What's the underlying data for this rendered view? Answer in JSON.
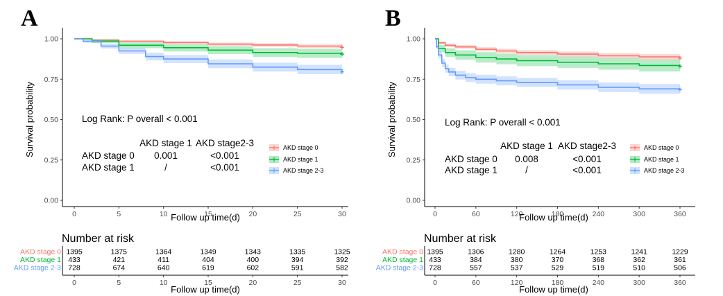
{
  "colors": {
    "stage0": "#F8766D",
    "stage1": "#00BA38",
    "stage23": "#619CFF"
  },
  "chart_data": [
    {
      "panel": "A",
      "type": "line",
      "ylabel": "Survival probability",
      "xlabel": "Follow up time(d)",
      "xlim": [
        0,
        30
      ],
      "ylim": [
        0,
        1
      ],
      "xticks": [
        0,
        5,
        10,
        15,
        20,
        25,
        30
      ],
      "yticks": [
        "0.00",
        "0.25",
        "0.50",
        "0.75",
        "1.00"
      ],
      "series": [
        {
          "name": "AKD stage 0",
          "key": "stage0",
          "x": [
            0,
            2,
            5,
            10,
            15,
            20,
            25,
            30
          ],
          "y": [
            1.0,
            0.992,
            0.985,
            0.977,
            0.967,
            0.962,
            0.955,
            0.947
          ],
          "lower": [
            1.0,
            0.988,
            0.979,
            0.969,
            0.957,
            0.951,
            0.943,
            0.933
          ],
          "upper": [
            1.0,
            0.997,
            0.991,
            0.985,
            0.977,
            0.973,
            0.967,
            0.961
          ]
        },
        {
          "name": "AKD stage 1",
          "key": "stage1",
          "x": [
            0,
            2,
            5,
            10,
            15,
            20,
            25,
            30
          ],
          "y": [
            1.0,
            0.985,
            0.96,
            0.945,
            0.93,
            0.915,
            0.91,
            0.905
          ],
          "lower": [
            1.0,
            0.973,
            0.942,
            0.922,
            0.905,
            0.888,
            0.882,
            0.876
          ],
          "upper": [
            1.0,
            0.997,
            0.978,
            0.967,
            0.955,
            0.942,
            0.938,
            0.934
          ]
        },
        {
          "name": "AKD stage 2-3",
          "key": "stage23",
          "x": [
            0,
            1,
            3,
            5,
            8,
            10,
            15,
            20,
            25,
            30
          ],
          "y": [
            1.0,
            0.985,
            0.955,
            0.925,
            0.89,
            0.875,
            0.845,
            0.825,
            0.81,
            0.795
          ],
          "lower": [
            1.0,
            0.976,
            0.94,
            0.906,
            0.866,
            0.85,
            0.818,
            0.797,
            0.781,
            0.765
          ],
          "upper": [
            1.0,
            0.994,
            0.97,
            0.944,
            0.914,
            0.9,
            0.872,
            0.853,
            0.839,
            0.825
          ]
        }
      ],
      "annotation": {
        "logrank": "Log Rank:  P overall < 0.001",
        "col_headers": [
          "AKD stage 1",
          "AKD stage2-3"
        ],
        "rows": [
          {
            "label": "AKD stage 0",
            "values": [
              "0.001",
              "<0.001"
            ]
          },
          {
            "label": "AKD stage 1",
            "values": [
              "/",
              "<0.001"
            ]
          }
        ]
      },
      "risk_table": {
        "title": "Number at risk",
        "xlabel": "Follow up time(d)",
        "times": [
          0,
          5,
          10,
          15,
          20,
          25,
          30
        ],
        "rows": [
          {
            "name": "AKD stage 0",
            "key": "stage0",
            "values": [
              1395,
              1375,
              1364,
              1349,
              1343,
              1335,
              1325
            ]
          },
          {
            "name": "AKD stage 1",
            "key": "stage1",
            "values": [
              433,
              421,
              411,
              404,
              400,
              394,
              392
            ]
          },
          {
            "name": "AKD stage 2-3",
            "key": "stage23",
            "values": [
              728,
              674,
              640,
              619,
              602,
              591,
              582
            ]
          }
        ]
      }
    },
    {
      "panel": "B",
      "type": "line",
      "ylabel": "Survival probability",
      "xlabel": "Follow up time(d)",
      "xlim": [
        0,
        360
      ],
      "ylim": [
        0,
        1
      ],
      "xticks": [
        0,
        60,
        120,
        180,
        240,
        300,
        360
      ],
      "yticks": [
        "0.00",
        "0.25",
        "0.50",
        "0.75",
        "1.00"
      ],
      "series": [
        {
          "name": "AKD stage 0",
          "key": "stage0",
          "x": [
            0,
            5,
            15,
            30,
            60,
            90,
            120,
            180,
            240,
            300,
            360
          ],
          "y": [
            1.0,
            0.975,
            0.96,
            0.95,
            0.935,
            0.925,
            0.915,
            0.905,
            0.895,
            0.888,
            0.88
          ],
          "lower": [
            1.0,
            0.967,
            0.95,
            0.939,
            0.922,
            0.911,
            0.9,
            0.889,
            0.878,
            0.87,
            0.861
          ],
          "upper": [
            1.0,
            0.983,
            0.97,
            0.961,
            0.948,
            0.939,
            0.93,
            0.921,
            0.912,
            0.906,
            0.899
          ]
        },
        {
          "name": "AKD stage 1",
          "key": "stage1",
          "x": [
            0,
            5,
            15,
            30,
            60,
            90,
            120,
            180,
            240,
            300,
            360
          ],
          "y": [
            1.0,
            0.94,
            0.915,
            0.9,
            0.885,
            0.875,
            0.865,
            0.855,
            0.845,
            0.835,
            0.83
          ],
          "lower": [
            1.0,
            0.918,
            0.889,
            0.871,
            0.853,
            0.842,
            0.831,
            0.82,
            0.809,
            0.798,
            0.792
          ],
          "upper": [
            1.0,
            0.962,
            0.941,
            0.929,
            0.917,
            0.908,
            0.899,
            0.89,
            0.881,
            0.872,
            0.868
          ]
        },
        {
          "name": "AKD stage 2-3",
          "key": "stage23",
          "x": [
            0,
            2,
            5,
            10,
            15,
            20,
            30,
            45,
            60,
            90,
            120,
            180,
            240,
            300,
            360
          ],
          "y": [
            1.0,
            0.95,
            0.9,
            0.85,
            0.815,
            0.795,
            0.775,
            0.76,
            0.75,
            0.74,
            0.73,
            0.715,
            0.7,
            0.69,
            0.685
          ],
          "lower": [
            1.0,
            0.935,
            0.878,
            0.826,
            0.79,
            0.769,
            0.748,
            0.733,
            0.722,
            0.712,
            0.702,
            0.686,
            0.671,
            0.66,
            0.654
          ],
          "upper": [
            1.0,
            0.965,
            0.922,
            0.874,
            0.84,
            0.821,
            0.802,
            0.787,
            0.778,
            0.768,
            0.758,
            0.744,
            0.729,
            0.72,
            0.716
          ]
        }
      ],
      "annotation": {
        "logrank": "Log Rank:  P overall < 0.001",
        "col_headers": [
          "AKD stage 1",
          "AKD stage2-3"
        ],
        "rows": [
          {
            "label": "AKD stage 0",
            "values": [
              "0.008",
              "<0.001"
            ]
          },
          {
            "label": "AKD stage 1",
            "values": [
              "/",
              "<0.001"
            ]
          }
        ]
      },
      "risk_table": {
        "title": "Number at risk",
        "xlabel": "Follow up time(d)",
        "times": [
          0,
          60,
          120,
          180,
          240,
          300,
          360
        ],
        "rows": [
          {
            "name": "AKD stage 0",
            "key": "stage0",
            "values": [
              1395,
              1306,
              1280,
              1264,
              1253,
              1241,
              1229
            ]
          },
          {
            "name": "AKD stage 1",
            "key": "stage1",
            "values": [
              433,
              384,
              380,
              370,
              368,
              362,
              361
            ]
          },
          {
            "name": "AKD stage 2-3",
            "key": "stage23",
            "values": [
              728,
              557,
              537,
              529,
              519,
              510,
              506
            ]
          }
        ]
      }
    }
  ]
}
